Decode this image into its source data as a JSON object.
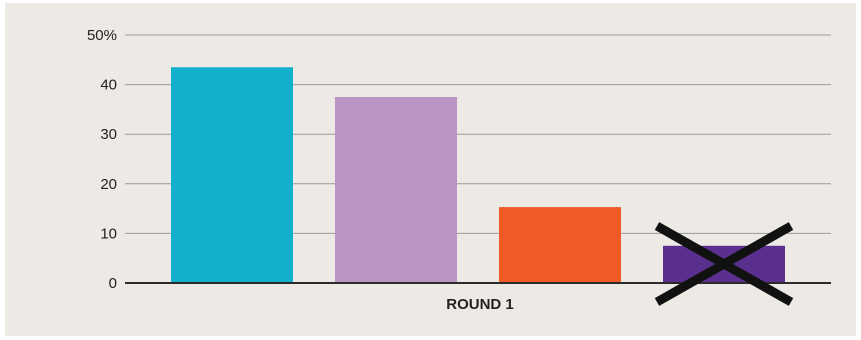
{
  "chart_data": {
    "type": "bar",
    "xlabel": "ROUND 1",
    "ylabel": "",
    "title": "",
    "y_unit": "%",
    "ylim": [
      0,
      50
    ],
    "yticks": [
      "0",
      "10",
      "20",
      "30",
      "40",
      "50%"
    ],
    "grid": true,
    "values": [
      43.5,
      37.5,
      15.3,
      7.5
    ],
    "colors": [
      "#12b0cc",
      "#ba94c4",
      "#ef5a27",
      "#5a2f8f"
    ],
    "eliminated_index": 3,
    "background": "#ede9e5"
  }
}
